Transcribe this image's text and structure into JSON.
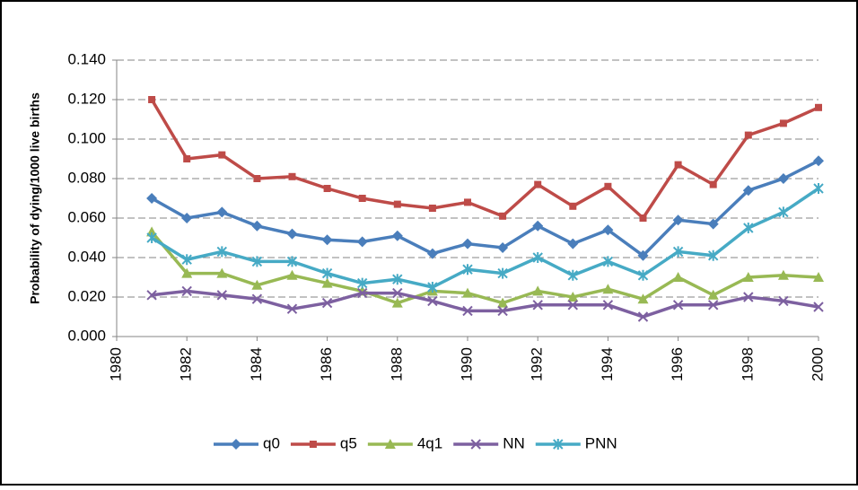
{
  "chart_data": {
    "type": "line",
    "y_label": "Probability of dying/1000 live births",
    "x": [
      1981,
      1982,
      1983,
      1984,
      1985,
      1986,
      1987,
      1988,
      1989,
      1990,
      1991,
      1992,
      1993,
      1994,
      1995,
      1996,
      1997,
      1998,
      1999,
      2000
    ],
    "series": [
      {
        "name": "q0",
        "color": "#4a7ebb",
        "marker": "diamond",
        "values": [
          0.07,
          0.06,
          0.063,
          0.056,
          0.052,
          0.049,
          0.048,
          0.051,
          0.042,
          0.047,
          0.045,
          0.056,
          0.047,
          0.054,
          0.041,
          0.059,
          0.057,
          0.074,
          0.08,
          0.089
        ]
      },
      {
        "name": "q5",
        "color": "#be4b48",
        "marker": "square",
        "values": [
          0.12,
          0.09,
          0.092,
          0.08,
          0.081,
          0.075,
          0.07,
          0.067,
          0.065,
          0.068,
          0.061,
          0.077,
          0.066,
          0.076,
          0.06,
          0.087,
          0.077,
          0.102,
          0.108,
          0.116
        ]
      },
      {
        "name": "4q1",
        "color": "#98b954",
        "marker": "triangle",
        "values": [
          0.053,
          0.032,
          0.032,
          0.026,
          0.031,
          0.027,
          0.023,
          0.017,
          0.023,
          0.022,
          0.017,
          0.023,
          0.02,
          0.024,
          0.019,
          0.03,
          0.021,
          0.03,
          0.031,
          0.03
        ]
      },
      {
        "name": "NN",
        "color": "#7d60a0",
        "marker": "x",
        "values": [
          0.021,
          0.023,
          0.021,
          0.019,
          0.014,
          0.017,
          0.022,
          0.022,
          0.018,
          0.013,
          0.013,
          0.016,
          0.016,
          0.016,
          0.01,
          0.016,
          0.016,
          0.02,
          0.018,
          0.015
        ]
      },
      {
        "name": "PNN",
        "color": "#46aac5",
        "marker": "star",
        "values": [
          0.05,
          0.039,
          0.043,
          0.038,
          0.038,
          0.032,
          0.027,
          0.029,
          0.025,
          0.034,
          0.032,
          0.04,
          0.031,
          0.038,
          0.031,
          0.043,
          0.041,
          0.055,
          0.063,
          0.075
        ]
      }
    ],
    "xlim": [
      1980,
      2000
    ],
    "xticks": [
      1980,
      1982,
      1984,
      1986,
      1988,
      1990,
      1992,
      1994,
      1996,
      1998,
      2000
    ],
    "ylim": [
      0,
      0.14
    ],
    "yticks": [
      {
        "value": 0,
        "label": "0.000"
      },
      {
        "value": 0.02,
        "label": "0.020"
      },
      {
        "value": 0.04,
        "label": "0.040"
      },
      {
        "value": 0.06,
        "label": "0.060"
      },
      {
        "value": 0.08,
        "label": "0.080"
      },
      {
        "value": 0.1,
        "label": "0.100"
      },
      {
        "value": 0.12,
        "label": "0.120"
      },
      {
        "value": 0.14,
        "label": "0.140"
      }
    ],
    "grid": true,
    "legend": "bottom"
  }
}
